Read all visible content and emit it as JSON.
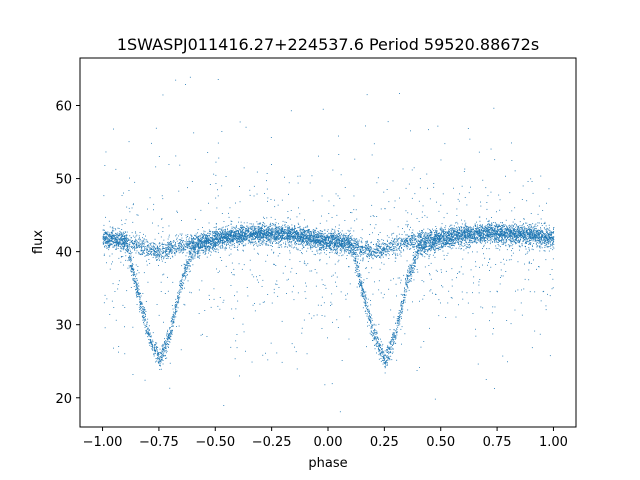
{
  "chart_data": {
    "type": "scatter",
    "title": "1SWASPJ011416.27+224537.6 Period 59520.88672s",
    "xlabel": "phase",
    "ylabel": "flux",
    "xlim": [
      -1.1,
      1.1
    ],
    "ylim": [
      16,
      66.5
    ],
    "x_ticks": [
      -1.0,
      -0.75,
      -0.5,
      -0.25,
      0.0,
      0.25,
      0.5,
      0.75,
      1.0
    ],
    "x_tick_labels": [
      "−1.00",
      "−0.75",
      "−0.50",
      "−0.25",
      "0.00",
      "0.25",
      "0.50",
      "0.75",
      "1.00"
    ],
    "y_ticks": [
      20,
      30,
      40,
      50,
      60
    ],
    "y_tick_labels": [
      "20",
      "30",
      "40",
      "50",
      "60"
    ],
    "grid": false,
    "point_color": "#1f77b4",
    "series": [
      {
        "marker": "dot",
        "profile_phase": [
          -1.0,
          -0.9,
          -0.85,
          -0.8,
          -0.75,
          -0.7,
          -0.65,
          -0.6,
          -0.5,
          -0.4,
          -0.3,
          -0.2,
          -0.1,
          0.0,
          0.1,
          0.15,
          0.2,
          0.25,
          0.3,
          0.35,
          0.4,
          0.5,
          0.6,
          0.7,
          0.8,
          0.9,
          1.0
        ],
        "profile_flux": [
          41.8,
          41.5,
          35,
          29,
          25,
          29,
          36,
          40.5,
          41.5,
          42.2,
          42.6,
          42.5,
          42,
          41.5,
          41.3,
          35,
          29,
          25,
          29,
          36,
          40.5,
          41.5,
          42.2,
          42.6,
          42.5,
          42.2,
          41.8
        ],
        "flat_track_flux": [
          42,
          41.5,
          40.5,
          40,
          40.5,
          41.3,
          42,
          42.5,
          42.5,
          42,
          41.5,
          41,
          40,
          40.5,
          41.5,
          42.2,
          42.5,
          42.5,
          42
        ],
        "flat_track_phase": [
          -1.0,
          -0.9,
          -0.8,
          -0.75,
          -0.7,
          -0.6,
          -0.5,
          -0.3,
          -0.2,
          -0.1,
          0.0,
          0.1,
          0.2,
          0.25,
          0.35,
          0.5,
          0.7,
          0.9,
          1.0
        ]
      }
    ]
  }
}
